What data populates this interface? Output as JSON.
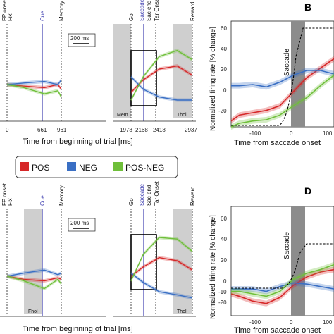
{
  "colors": {
    "pos": "#d62728",
    "neg": "#3a6fc4",
    "posneg": "#6fbf3a",
    "cue": "#3f3fb0",
    "shade": "#cfcfcf",
    "saccade_band": "#8c8c8c"
  },
  "legend": {
    "items": [
      {
        "key": "pos",
        "label": "POS"
      },
      {
        "key": "neg",
        "label": "NEG"
      },
      {
        "key": "posneg",
        "label": "POS-NEG"
      }
    ]
  },
  "timeline": {
    "xlabel": "Time from beginning of trial [ms]",
    "scale_bar": "200 ms",
    "ticks_left": [
      "0",
      "661",
      "961"
    ],
    "ticks_right": [
      "1978",
      "2168",
      "2418",
      "2937"
    ],
    "events_top_a": [
      "FP onset",
      "Fix",
      "Cue",
      "Memory",
      "Go",
      "Saccade",
      "Sac end",
      "Tar Onset",
      "Reward"
    ],
    "events_top_c": [
      "FP onset",
      "Fix",
      "Cue",
      "Memory",
      "Go",
      "Saccade",
      "Sac end",
      "Tar Onset",
      "Reward"
    ],
    "shaded_a": [
      "Mem",
      "Thol"
    ],
    "shaded_c": [
      "Fhol",
      "Thol"
    ]
  },
  "saccade_panels": {
    "ylabel": "Normalized firing rate [% change]",
    "xlabel": "Time from saccade onset",
    "band_label": "Saccade",
    "panel_b": "B",
    "panel_d": "D",
    "x_ticks": [
      "-100",
      "0",
      "100"
    ],
    "y_ticks_b": [
      "60",
      "40",
      "20",
      "0",
      "-20"
    ],
    "y_ticks_d": [
      "60",
      "40",
      "20",
      "0",
      "-10",
      "-20"
    ]
  },
  "chart_data": [
    {
      "type": "line",
      "title": "",
      "xlabel": "Time from beginning of trial [ms]",
      "ylabel": "",
      "x_ticks": [
        0,
        661,
        961,
        1978,
        2168,
        2418,
        2937
      ],
      "series": [
        {
          "name": "POS",
          "x": [
            0,
            300,
            661,
            900,
            961,
            1978,
            2168,
            2418,
            2700,
            2937
          ],
          "y": [
            0,
            -1,
            -2,
            0,
            -3,
            -5,
            3,
            10,
            12,
            6
          ]
        },
        {
          "name": "NEG",
          "x": [
            0,
            300,
            661,
            900,
            961,
            1978,
            2168,
            2418,
            2700,
            2937
          ],
          "y": [
            0,
            1,
            2,
            0,
            3,
            5,
            -3,
            -8,
            -10,
            -10
          ]
        },
        {
          "name": "POS-NEG",
          "x": [
            0,
            300,
            661,
            900,
            961,
            1978,
            2168,
            2418,
            2700,
            2937
          ],
          "y": [
            0,
            -2,
            -6,
            -4,
            -8,
            -10,
            5,
            18,
            22,
            16
          ]
        }
      ]
    },
    {
      "type": "line",
      "title": "",
      "xlabel": "Time from saccade onset",
      "ylabel": "Normalized firing rate [% change]",
      "xlim": [
        -180,
        200
      ],
      "ylim": [
        -30,
        60
      ],
      "series": [
        {
          "name": "POS",
          "x": [
            -180,
            -150,
            -100,
            -50,
            0,
            50,
            100,
            150,
            200
          ],
          "y": [
            -25,
            -20,
            -18,
            -16,
            -12,
            0,
            12,
            20,
            28
          ]
        },
        {
          "name": "NEG",
          "x": [
            -180,
            -150,
            -100,
            -50,
            0,
            50,
            100,
            150,
            200
          ],
          "y": [
            5,
            5,
            6,
            4,
            8,
            14,
            18,
            18,
            15
          ]
        },
        {
          "name": "POS-NEG",
          "x": [
            -180,
            -150,
            -100,
            -50,
            0,
            50,
            100,
            150,
            200
          ],
          "y": [
            -30,
            -27,
            -25,
            -24,
            -20,
            -12,
            -5,
            5,
            14
          ]
        }
      ]
    },
    {
      "type": "line",
      "title": "",
      "xlabel": "Time from beginning of trial [ms]",
      "ylabel": "",
      "x_ticks": [
        0,
        661,
        961,
        1978,
        2168,
        2418,
        2937
      ],
      "series": [
        {
          "name": "POS",
          "x": [
            0,
            300,
            661,
            900,
            961,
            1978,
            2168,
            2418,
            2700,
            2937
          ],
          "y": [
            0,
            -2,
            -3,
            -1,
            -2,
            0,
            6,
            12,
            10,
            4
          ]
        },
        {
          "name": "NEG",
          "x": [
            0,
            300,
            661,
            900,
            961,
            1978,
            2168,
            2418,
            2700,
            2937
          ],
          "y": [
            0,
            2,
            4,
            1,
            2,
            2,
            -4,
            -10,
            -12,
            -14
          ]
        },
        {
          "name": "POS-NEG",
          "x": [
            0,
            300,
            661,
            900,
            961,
            1978,
            2168,
            2418,
            2700,
            2937
          ],
          "y": [
            0,
            -3,
            -8,
            -2,
            -5,
            -3,
            14,
            25,
            24,
            16
          ]
        }
      ]
    },
    {
      "type": "line",
      "title": "",
      "xlabel": "Time from saccade onset",
      "ylabel": "Normalized firing rate [% change]",
      "xlim": [
        -180,
        200
      ],
      "ylim": [
        -30,
        60
      ],
      "series": [
        {
          "name": "POS",
          "x": [
            -180,
            -150,
            -100,
            -50,
            0,
            50,
            100,
            150,
            200
          ],
          "y": [
            -12,
            -14,
            -18,
            -20,
            -15,
            -5,
            2,
            6,
            8
          ]
        },
        {
          "name": "NEG",
          "x": [
            -180,
            -150,
            -100,
            -50,
            0,
            50,
            100,
            150,
            200
          ],
          "y": [
            -8,
            -8,
            -8,
            -10,
            -6,
            -3,
            -4,
            -6,
            -8
          ]
        },
        {
          "name": "POS-NEG",
          "x": [
            -180,
            -150,
            -100,
            -50,
            0,
            50,
            100,
            150,
            200
          ],
          "y": [
            -10,
            -10,
            -12,
            -14,
            -10,
            0,
            5,
            8,
            12
          ]
        }
      ]
    }
  ]
}
